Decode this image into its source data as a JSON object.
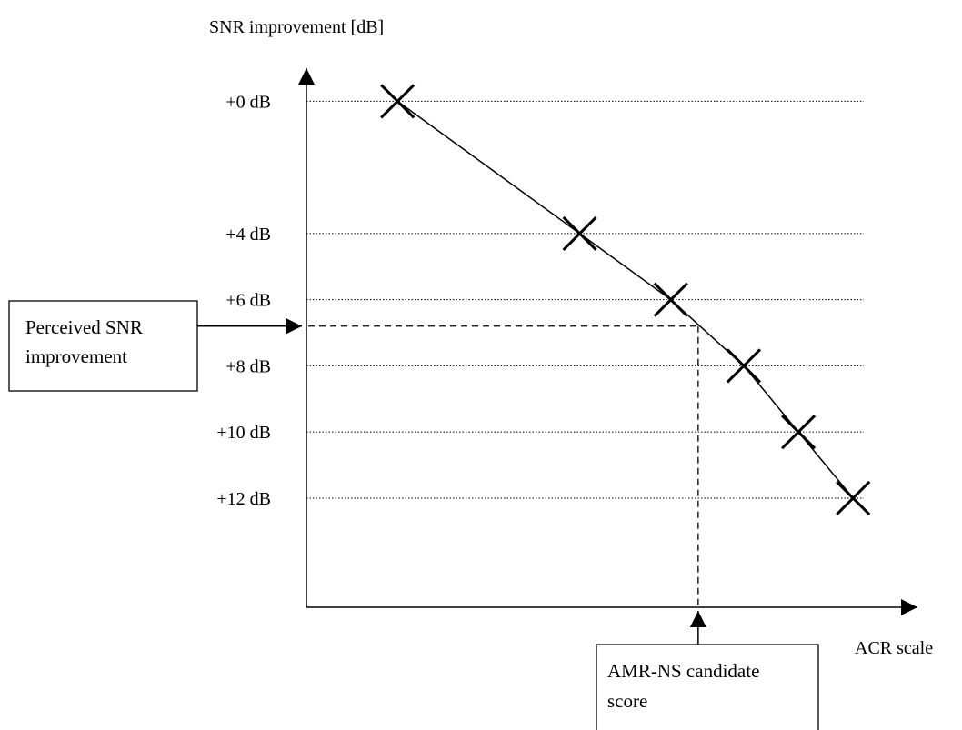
{
  "chart_data": {
    "type": "line",
    "ylabel": "SNR improvement [dB]",
    "xlabel": "ACR scale",
    "y_ticks": [
      {
        "value": 0,
        "label": "+0 dB"
      },
      {
        "value": 4,
        "label": "+4 dB"
      },
      {
        "value": 6,
        "label": "+6 dB"
      },
      {
        "value": 8,
        "label": "+8 dB"
      },
      {
        "value": 10,
        "label": "+10 dB"
      },
      {
        "value": 12,
        "label": "+12 dB"
      }
    ],
    "ylim": [
      15.3,
      -1
    ],
    "y_inverted": true,
    "xlim": [
      0,
      100
    ],
    "grid": "horizontal dotted at y ticks",
    "series": [
      {
        "marker": "x",
        "points": [
          {
            "x": 15,
            "y": 0
          },
          {
            "x": 45,
            "y": 4
          },
          {
            "x": 60,
            "y": 6
          },
          {
            "x": 72,
            "y": 8
          },
          {
            "x": 81,
            "y": 10
          },
          {
            "x": 90,
            "y": 12
          }
        ]
      }
    ],
    "annotations": [
      {
        "id": "perceived",
        "text_lines": [
          "Perceived SNR",
          "improvement"
        ],
        "points_to": "y-axis"
      },
      {
        "id": "candidate",
        "text_lines": [
          "AMR-NS candidate",
          "score"
        ],
        "points_to": "x-axis"
      }
    ],
    "reading": {
      "x": 64.5,
      "y": 6.8
    }
  }
}
